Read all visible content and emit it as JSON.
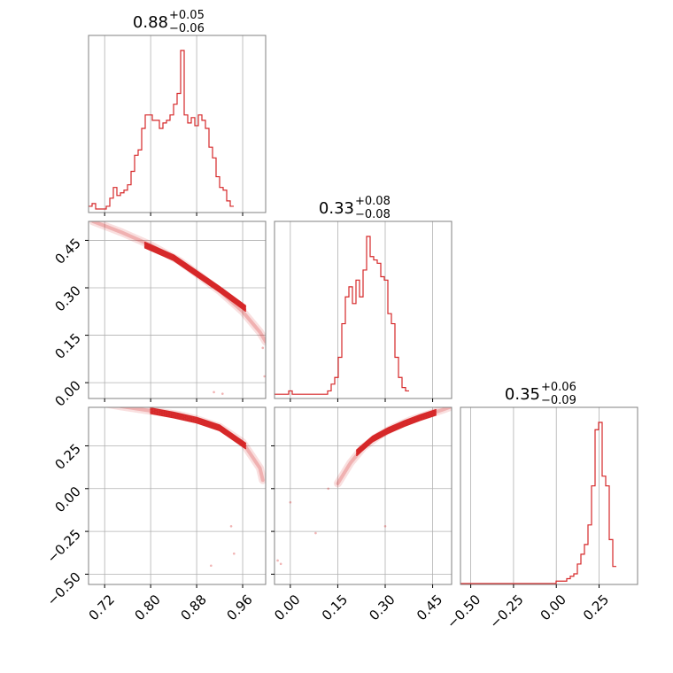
{
  "chart_data": {
    "type": "corner",
    "color": "#d62728",
    "grid": true,
    "parameters": [
      {
        "title": {
          "median": "0.88",
          "plus": "+0.05",
          "minus": "−0.06"
        },
        "range": [
          0.692,
          1.0
        ],
        "ticks": [
          {
            "value": 0.72,
            "label": "0.72"
          },
          {
            "value": 0.8,
            "label": "0.80"
          },
          {
            "value": 0.88,
            "label": "0.88"
          },
          {
            "value": 0.96,
            "label": "0.96"
          }
        ]
      },
      {
        "title": {
          "median": "0.33",
          "plus": "+0.08",
          "minus": "−0.08"
        },
        "range": [
          -0.05,
          0.51
        ],
        "ticks": [
          {
            "value": 0.0,
            "label": "0.00"
          },
          {
            "value": 0.15,
            "label": "0.15"
          },
          {
            "value": 0.3,
            "label": "0.30"
          },
          {
            "value": 0.45,
            "label": "0.45"
          }
        ]
      },
      {
        "title": {
          "median": "0.35",
          "plus": "+0.06",
          "minus": "−0.09"
        },
        "range": [
          -0.56,
          0.475
        ],
        "ticks": [
          {
            "value": -0.5,
            "label": "−0.50"
          },
          {
            "value": -0.25,
            "label": "−0.25"
          },
          {
            "value": 0.0,
            "label": "0.00"
          },
          {
            "value": 0.25,
            "label": "0.25"
          }
        ]
      }
    ],
    "histograms": [
      {
        "param": 0,
        "bin_start": 0.692,
        "bin_width": 0.00616,
        "counts": [
          2,
          3,
          1,
          1,
          1,
          2,
          5,
          9,
          6,
          7,
          8,
          10,
          15,
          21,
          23,
          31,
          36,
          36,
          34,
          34,
          31,
          33,
          34,
          36,
          40,
          44,
          60,
          36,
          33,
          35,
          32,
          36,
          34,
          31,
          24,
          20,
          13,
          9,
          8,
          4,
          2
        ]
      },
      {
        "param": 1,
        "bin_start": -0.05,
        "bin_width": 0.0112,
        "counts": [
          1,
          1,
          1,
          1,
          2,
          1,
          1,
          1,
          1,
          1,
          1,
          1,
          1,
          1,
          1,
          2,
          4,
          6,
          12,
          22,
          30,
          33,
          28,
          35,
          30,
          38,
          48,
          42,
          41,
          40,
          36,
          35,
          25,
          22,
          12,
          6,
          3,
          2
        ]
      },
      {
        "param": 2,
        "bin_start": -0.56,
        "bin_width": 0.0207,
        "counts": [
          0,
          0,
          0,
          0,
          0,
          0,
          0,
          0,
          0,
          0,
          0,
          0,
          0,
          0,
          0,
          0,
          0,
          0,
          0,
          0,
          0,
          0,
          0,
          0,
          0,
          0,
          0,
          1,
          1,
          1,
          2,
          3,
          4,
          8,
          12,
          16,
          24,
          40,
          63,
          66,
          44,
          40,
          18,
          7
        ]
      }
    ],
    "scatter_pairs": [
      {
        "x_param": 0,
        "y_param": 1,
        "ridge": [
          [
            0.7,
            0.51
          ],
          [
            0.75,
            0.475
          ],
          [
            0.8,
            0.435
          ],
          [
            0.85,
            0.385
          ],
          [
            0.88,
            0.345
          ],
          [
            0.92,
            0.29
          ],
          [
            0.96,
            0.225
          ],
          [
            0.99,
            0.16
          ],
          [
            1.0,
            0.13
          ]
        ],
        "contour_band": [
          [
            0.79,
            0.435
          ],
          [
            0.84,
            0.395
          ],
          [
            0.88,
            0.345
          ],
          [
            0.92,
            0.295
          ],
          [
            0.965,
            0.235
          ]
        ],
        "outliers": [
          [
            0.91,
            -0.03
          ],
          [
            0.925,
            -0.035
          ],
          [
            0.995,
            0.11
          ],
          [
            0.998,
            0.02
          ]
        ]
      },
      {
        "x_param": 0,
        "y_param": 2,
        "ridge": [
          [
            0.7,
            0.51
          ],
          [
            0.75,
            0.48
          ],
          [
            0.8,
            0.455
          ],
          [
            0.85,
            0.43
          ],
          [
            0.88,
            0.405
          ],
          [
            0.92,
            0.36
          ],
          [
            0.96,
            0.27
          ],
          [
            0.99,
            0.12
          ],
          [
            0.995,
            0.05
          ]
        ],
        "contour_band": [
          [
            0.8,
            0.455
          ],
          [
            0.84,
            0.43
          ],
          [
            0.88,
            0.4
          ],
          [
            0.92,
            0.355
          ],
          [
            0.965,
            0.25
          ]
        ],
        "outliers": [
          [
            0.94,
            -0.22
          ],
          [
            0.945,
            -0.38
          ],
          [
            0.905,
            -0.45
          ]
        ]
      },
      {
        "x_param": 1,
        "y_param": 2,
        "ridge": [
          [
            0.15,
            0.03
          ],
          [
            0.19,
            0.15
          ],
          [
            0.23,
            0.24
          ],
          [
            0.28,
            0.31
          ],
          [
            0.33,
            0.36
          ],
          [
            0.38,
            0.4
          ],
          [
            0.43,
            0.43
          ],
          [
            0.48,
            0.46
          ],
          [
            0.51,
            0.48
          ]
        ],
        "contour_band": [
          [
            0.21,
            0.21
          ],
          [
            0.26,
            0.29
          ],
          [
            0.31,
            0.34
          ],
          [
            0.36,
            0.38
          ],
          [
            0.41,
            0.415
          ],
          [
            0.46,
            0.445
          ]
        ],
        "outliers": [
          [
            0.0,
            -0.08
          ],
          [
            0.08,
            -0.26
          ],
          [
            -0.04,
            -0.42
          ],
          [
            -0.03,
            -0.44
          ],
          [
            0.3,
            -0.22
          ],
          [
            0.12,
            0.0
          ]
        ]
      }
    ]
  }
}
